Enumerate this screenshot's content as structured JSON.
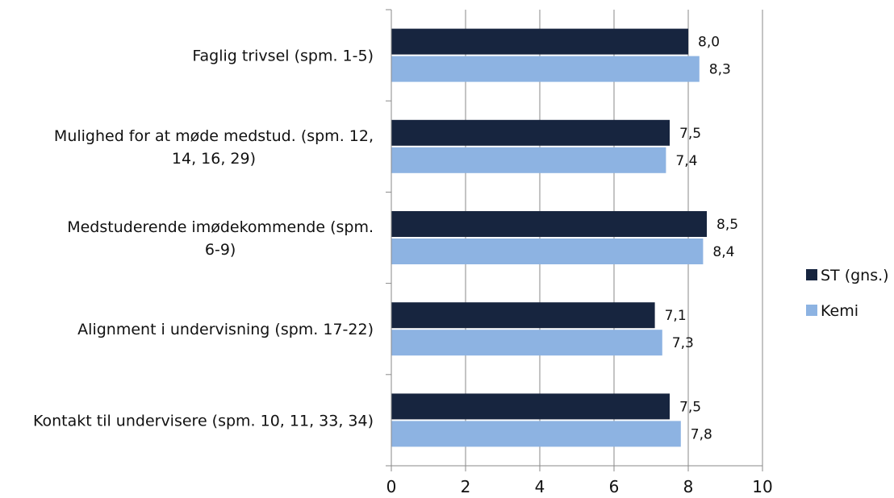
{
  "chart_data": {
    "type": "bar",
    "orientation": "horizontal",
    "categories": [
      [
        "Faglig trivsel (spm. 1-5)"
      ],
      [
        "Mulighed for at møde medstud. (spm. 12,",
        "14, 16, 29)"
      ],
      [
        "Medstuderende imødekommende (spm.",
        "6-9)"
      ],
      [
        "Alignment i undervisning (spm. 17-22)"
      ],
      [
        "Kontakt til undervisere (spm. 10, 11, 33, 34)"
      ]
    ],
    "series": [
      {
        "name": "ST (gns.)",
        "color": "#17253f",
        "values": [
          8.0,
          7.5,
          8.5,
          7.1,
          7.5
        ],
        "labels": [
          "8,0",
          "7,5",
          "8,5",
          "7,1",
          "7,5"
        ]
      },
      {
        "name": "Kemi",
        "color": "#8db3e2",
        "values": [
          8.3,
          7.4,
          8.4,
          7.3,
          7.8
        ],
        "labels": [
          "8,3",
          "7,4",
          "8,4",
          "7,3",
          "7,8"
        ]
      }
    ],
    "xlim": [
      0,
      10
    ],
    "xticks": [
      0,
      2,
      4,
      6,
      8,
      10
    ],
    "grid": "vertical",
    "legend_position": "right"
  }
}
